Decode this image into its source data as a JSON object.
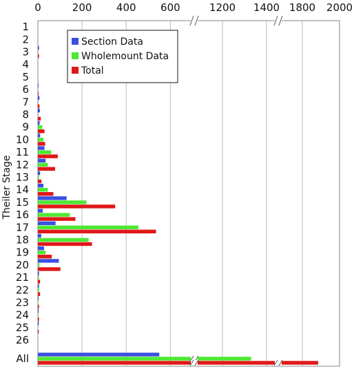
{
  "chart_data": {
    "type": "bar",
    "orientation": "horizontal",
    "title": "",
    "xlabel": "",
    "ylabel": "Theiler Stage",
    "categories": [
      "1",
      "2",
      "3",
      "4",
      "5",
      "6",
      "7",
      "8",
      "9",
      "10",
      "11",
      "12",
      "13",
      "14",
      "15",
      "16",
      "17",
      "18",
      "19",
      "20",
      "21",
      "22",
      "23",
      "24",
      "25",
      "26",
      "All"
    ],
    "series": [
      {
        "name": "Section Data",
        "color": "#3a4fe0",
        "values": [
          0,
          0,
          5,
          0,
          0,
          3,
          7,
          9,
          8,
          10,
          30,
          35,
          10,
          25,
          130,
          22,
          80,
          15,
          28,
          95,
          5,
          5,
          3,
          3,
          4,
          0,
          550
        ]
      },
      {
        "name": "Wholemount Data",
        "color": "#4de832",
        "values": [
          0,
          0,
          0,
          0,
          0,
          0,
          0,
          0,
          20,
          25,
          60,
          45,
          5,
          45,
          220,
          145,
          455,
          230,
          35,
          7,
          5,
          5,
          2,
          2,
          0,
          0,
          1330
        ]
      },
      {
        "name": "Total",
        "color": "#e01818",
        "values": [
          0,
          0,
          5,
          0,
          0,
          3,
          7,
          13,
          30,
          33,
          90,
          78,
          16,
          70,
          350,
          170,
          535,
          245,
          63,
          102,
          10,
          10,
          5,
          5,
          4,
          0,
          1885
        ]
      }
    ],
    "x_ticks": [
      "0",
      "200",
      "400",
      "600",
      "1200",
      "1400",
      "1800",
      "2000"
    ],
    "axis_breaks": [
      [
        680,
        1100
      ],
      [
        1450,
        1700
      ]
    ],
    "xlim": [
      0,
      2000
    ],
    "grid": true,
    "legend_position": "top-left"
  }
}
